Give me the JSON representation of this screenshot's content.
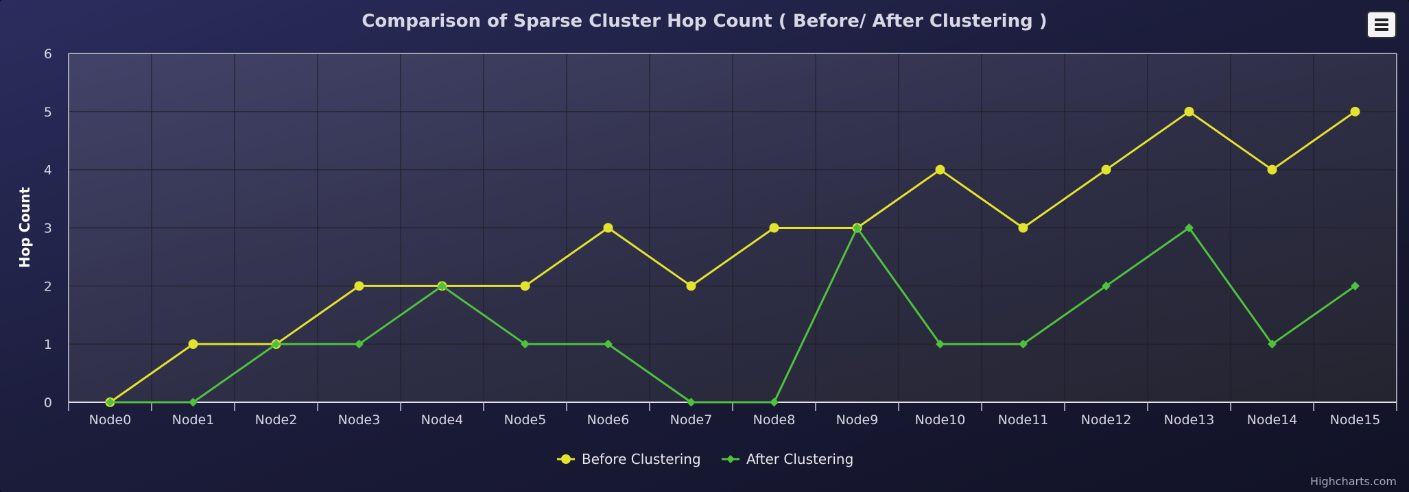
{
  "chart_data": {
    "type": "line",
    "title": "Comparison of Sparse Cluster Hop Count ( Before/ After Clustering )",
    "xlabel": "",
    "ylabel": "Hop Count",
    "categories": [
      "Node0",
      "Node1",
      "Node2",
      "Node3",
      "Node4",
      "Node5",
      "Node6",
      "Node7",
      "Node8",
      "Node9",
      "Node10",
      "Node11",
      "Node12",
      "Node13",
      "Node14",
      "Node15"
    ],
    "ylim": [
      0,
      6
    ],
    "yticks": [
      "0",
      "1",
      "2",
      "3",
      "4",
      "5",
      "6"
    ],
    "grid": true,
    "legend_position": "bottom-center",
    "series": [
      {
        "name": "Before Clustering",
        "values": [
          0,
          1,
          1,
          2,
          2,
          2,
          3,
          2,
          3,
          3,
          4,
          3,
          4,
          5,
          4,
          5
        ],
        "color": "#e3e32d",
        "marker": "circle"
      },
      {
        "name": "After Clustering",
        "values": [
          0,
          0,
          1,
          1,
          2,
          1,
          1,
          0,
          0,
          3,
          1,
          1,
          2,
          3,
          1,
          2
        ],
        "color": "#4fc23d",
        "marker": "diamond"
      }
    ]
  },
  "credits": "Highcharts.com",
  "menu": {
    "icon": "hamburger-menu-icon"
  }
}
